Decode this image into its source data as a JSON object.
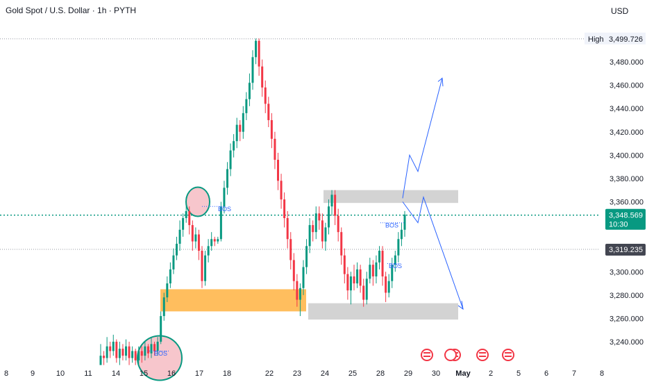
{
  "header": {
    "title": "Gold Spot / U.S. Dollar · 1h · PYTH",
    "currency": "USD"
  },
  "chart_data": {
    "type": "candlestick",
    "y_ticks": [
      "3,480.000",
      "3,460.000",
      "3,440.000",
      "3,420.000",
      "3,400.000",
      "3,380.000",
      "3,360.000",
      "3,300.000",
      "3,280.000",
      "3,260.000",
      "3,240.000"
    ],
    "y_tick_values": [
      3480,
      3460,
      3440,
      3420,
      3400,
      3380,
      3360,
      3300,
      3280,
      3260,
      3240
    ],
    "x_ticks": [
      "8",
      "9",
      "10",
      "11",
      "14",
      "15",
      "16",
      "17",
      "18",
      "22",
      "23",
      "24",
      "25",
      "28",
      "29",
      "30",
      "May",
      "2",
      "5",
      "6",
      "7",
      "8"
    ],
    "ylim": [
      3218,
      3508
    ],
    "high": {
      "label": "High",
      "value": "3,499.726"
    },
    "current_price": {
      "value": "3,348.569",
      "countdown": "10:30"
    },
    "marker_price": {
      "value": "3,319.235"
    },
    "annotations": [
      "BOS",
      "BOS",
      "BOS",
      "BOS"
    ],
    "colors": {
      "up": "#089981",
      "down": "#f23645",
      "zone": "#ffb74d",
      "box": "#c8c8c8",
      "arrow": "#2962ff",
      "circle_fill": "#f7c6cc",
      "circle_stroke": "#089981"
    },
    "candles": [
      [
        3220,
        3228,
        3238,
        3224
      ],
      [
        3228,
        3226,
        3232,
        3220
      ],
      [
        3226,
        3236,
        3244,
        3222
      ],
      [
        3236,
        3232,
        3240,
        3226
      ],
      [
        3232,
        3240,
        3246,
        3228
      ],
      [
        3240,
        3226,
        3242,
        3222
      ],
      [
        3226,
        3234,
        3240,
        3220
      ],
      [
        3234,
        3228,
        3238,
        3224
      ],
      [
        3228,
        3236,
        3242,
        3224
      ],
      [
        3236,
        3226,
        3240,
        3220
      ],
      [
        3226,
        3232,
        3236,
        3222
      ],
      [
        3232,
        3224,
        3234,
        3220
      ],
      [
        3224,
        3232,
        3236,
        3220
      ],
      [
        3232,
        3228,
        3236,
        3222
      ],
      [
        3228,
        3236,
        3240,
        3224
      ],
      [
        3236,
        3230,
        3238,
        3226
      ],
      [
        3230,
        3238,
        3244,
        3226
      ],
      [
        3238,
        3232,
        3240,
        3228
      ],
      [
        3232,
        3240,
        3244,
        3228
      ],
      [
        3240,
        3262,
        3266,
        3238
      ],
      [
        3262,
        3278,
        3282,
        3258
      ],
      [
        3278,
        3290,
        3296,
        3274
      ],
      [
        3290,
        3302,
        3308,
        3286
      ],
      [
        3302,
        3314,
        3320,
        3298
      ],
      [
        3314,
        3324,
        3330,
        3310
      ],
      [
        3324,
        3336,
        3344,
        3318
      ],
      [
        3336,
        3346,
        3350,
        3330
      ],
      [
        3346,
        3352,
        3364,
        3342
      ],
      [
        3352,
        3340,
        3356,
        3332
      ],
      [
        3340,
        3326,
        3344,
        3318
      ],
      [
        3326,
        3332,
        3338,
        3320
      ],
      [
        3332,
        3318,
        3336,
        3310
      ],
      [
        3318,
        3292,
        3322,
        3286
      ],
      [
        3292,
        3314,
        3318,
        3288
      ],
      [
        3314,
        3322,
        3328,
        3308
      ],
      [
        3322,
        3328,
        3334,
        3318
      ],
      [
        3328,
        3326,
        3330,
        3322
      ],
      [
        3326,
        3328,
        3330,
        3324
      ],
      [
        3328,
        3356,
        3360,
        3326
      ],
      [
        3356,
        3372,
        3378,
        3350
      ],
      [
        3372,
        3388,
        3394,
        3366
      ],
      [
        3388,
        3404,
        3410,
        3382
      ],
      [
        3404,
        3412,
        3418,
        3398
      ],
      [
        3412,
        3426,
        3432,
        3406
      ],
      [
        3426,
        3420,
        3430,
        3412
      ],
      [
        3420,
        3436,
        3442,
        3414
      ],
      [
        3436,
        3448,
        3454,
        3430
      ],
      [
        3448,
        3462,
        3470,
        3442
      ],
      [
        3462,
        3484,
        3490,
        3456
      ],
      [
        3484,
        3498,
        3500,
        3478
      ],
      [
        3498,
        3476,
        3500,
        3468
      ],
      [
        3476,
        3458,
        3482,
        3450
      ],
      [
        3458,
        3444,
        3464,
        3436
      ],
      [
        3444,
        3430,
        3450,
        3424
      ],
      [
        3430,
        3414,
        3436,
        3406
      ],
      [
        3414,
        3396,
        3420,
        3388
      ],
      [
        3396,
        3378,
        3402,
        3370
      ],
      [
        3378,
        3362,
        3384,
        3354
      ],
      [
        3362,
        3346,
        3368,
        3338
      ],
      [
        3346,
        3328,
        3352,
        3320
      ],
      [
        3328,
        3310,
        3334,
        3302
      ],
      [
        3310,
        3292,
        3316,
        3284
      ],
      [
        3292,
        3276,
        3298,
        3270
      ],
      [
        3276,
        3286,
        3290,
        3262
      ],
      [
        3286,
        3304,
        3310,
        3280
      ],
      [
        3304,
        3322,
        3328,
        3298
      ],
      [
        3322,
        3340,
        3346,
        3316
      ],
      [
        3340,
        3334,
        3344,
        3326
      ],
      [
        3334,
        3350,
        3356,
        3328
      ],
      [
        3350,
        3344,
        3356,
        3336
      ],
      [
        3344,
        3326,
        3350,
        3320
      ],
      [
        3326,
        3338,
        3342,
        3318
      ],
      [
        3338,
        3356,
        3362,
        3332
      ],
      [
        3356,
        3366,
        3370,
        3348
      ],
      [
        3366,
        3348,
        3370,
        3340
      ],
      [
        3348,
        3334,
        3354,
        3326
      ],
      [
        3334,
        3314,
        3338,
        3306
      ],
      [
        3314,
        3298,
        3320,
        3290
      ],
      [
        3298,
        3284,
        3304,
        3276
      ],
      [
        3284,
        3296,
        3300,
        3272
      ],
      [
        3296,
        3290,
        3306,
        3284
      ],
      [
        3290,
        3302,
        3308,
        3286
      ],
      [
        3302,
        3288,
        3306,
        3282
      ],
      [
        3288,
        3276,
        3294,
        3270
      ],
      [
        3276,
        3294,
        3300,
        3272
      ],
      [
        3294,
        3306,
        3312,
        3290
      ],
      [
        3306,
        3296,
        3310,
        3288
      ],
      [
        3296,
        3308,
        3314,
        3290
      ],
      [
        3308,
        3318,
        3322,
        3302
      ],
      [
        3318,
        3296,
        3322,
        3288
      ],
      [
        3296,
        3282,
        3300,
        3274
      ],
      [
        3282,
        3292,
        3298,
        3278
      ],
      [
        3292,
        3306,
        3312,
        3286
      ],
      [
        3306,
        3314,
        3318,
        3300
      ],
      [
        3314,
        3328,
        3334,
        3308
      ],
      [
        3328,
        3336,
        3342,
        3322
      ],
      [
        3336,
        3349,
        3352,
        3330
      ]
    ]
  }
}
